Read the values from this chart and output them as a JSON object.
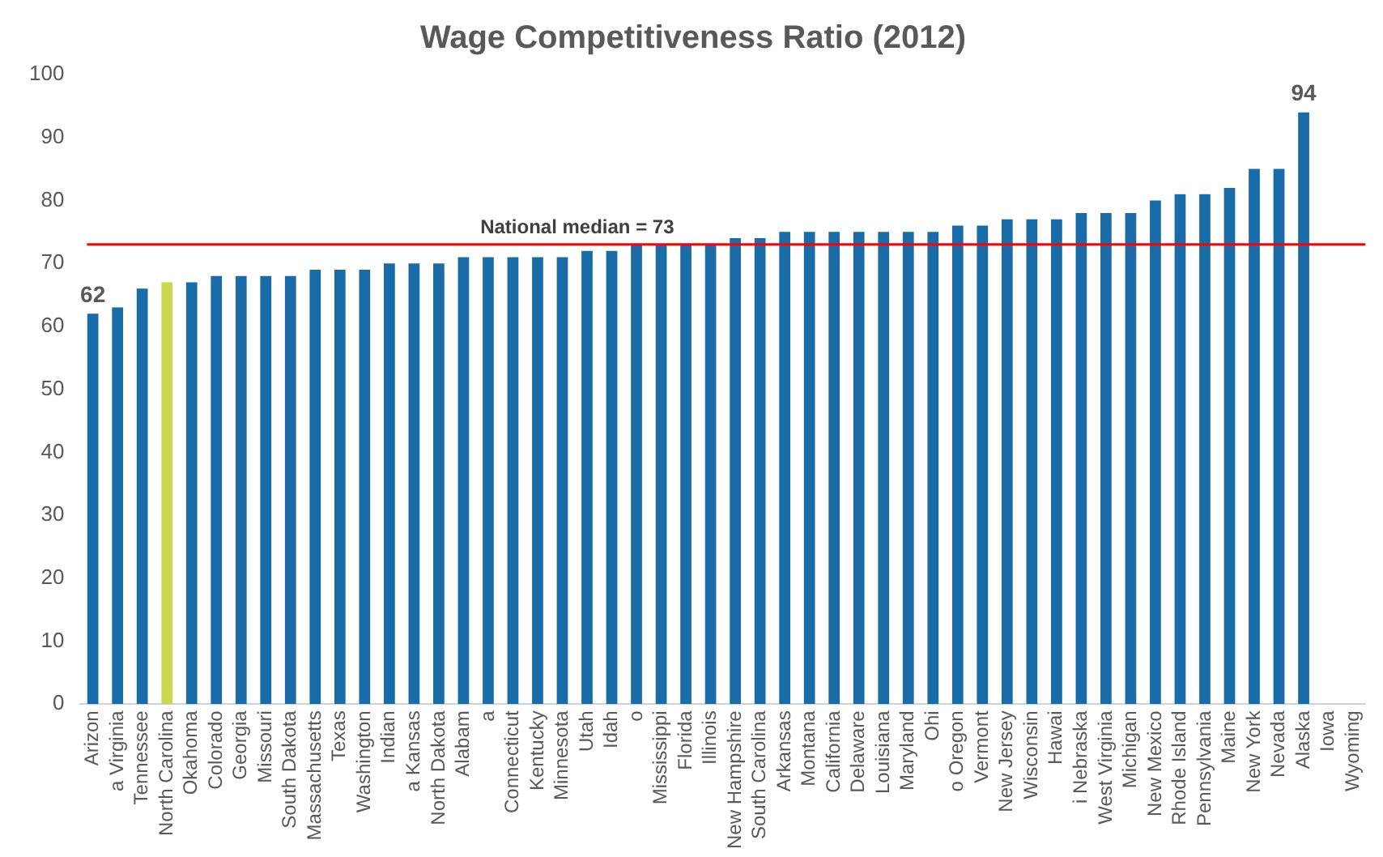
{
  "chart_data": {
    "type": "bar",
    "title": "Wage Competitiveness Ratio (2012)",
    "categories": [
      "Arizon",
      "a Virginia",
      "Tennessee",
      "North Carolina",
      "Okahoma",
      "Colorado",
      "Georgia",
      "Missouri",
      "South Dakota",
      "Massachusetts",
      "Texas",
      "Washington",
      "Indian",
      "a Kansas",
      "North Dakota",
      "Alabam",
      "a",
      "Connecticut",
      "Kentucky",
      "Minnesota",
      "Utah",
      "Idah",
      "o",
      "Mississippi",
      "Florida",
      "Illinois",
      "New Hampshire",
      "South Carolina",
      "Arkansas",
      "Montana",
      "California",
      "Delaware",
      "Louisiana",
      "Maryland",
      "Ohi",
      "o Oregon",
      "Vermont",
      "New Jersey",
      "Wisconsin",
      "Hawai",
      "i Nebraska",
      "West Virginia",
      "Michigan",
      "New Mexico",
      "Rhode Island",
      "Pennsylvania",
      "Maine",
      "New York",
      "Nevada",
      "Alaska",
      "Iowa",
      "Wyoming"
    ],
    "values": [
      62,
      63,
      66,
      67,
      67,
      68,
      68,
      68,
      68,
      69,
      69,
      69,
      70,
      70,
      70,
      71,
      71,
      71,
      71,
      71,
      72,
      72,
      73,
      73,
      73,
      73,
      74,
      74,
      75,
      75,
      75,
      75,
      75,
      75,
      75,
      76,
      76,
      77,
      77,
      77,
      78,
      78,
      78,
      80,
      81,
      81,
      82,
      85,
      85,
      94,
      null,
      null
    ],
    "colors": [
      "#1a6ca8",
      "#1a6ca8",
      "#1a6ca8",
      "#c9d94c",
      "#1a6ca8",
      "#1a6ca8",
      "#1a6ca8",
      "#1a6ca8",
      "#1a6ca8",
      "#1a6ca8",
      "#1a6ca8",
      "#1a6ca8",
      "#1a6ca8",
      "#1a6ca8",
      "#1a6ca8",
      "#1a6ca8",
      "#1a6ca8",
      "#1a6ca8",
      "#1a6ca8",
      "#1a6ca8",
      "#1a6ca8",
      "#1a6ca8",
      "#1a6ca8",
      "#1a6ca8",
      "#1a6ca8",
      "#1a6ca8",
      "#1a6ca8",
      "#1a6ca8",
      "#1a6ca8",
      "#1a6ca8",
      "#1a6ca8",
      "#1a6ca8",
      "#1a6ca8",
      "#1a6ca8",
      "#1a6ca8",
      "#1a6ca8",
      "#1a6ca8",
      "#1a6ca8",
      "#1a6ca8",
      "#1a6ca8",
      "#1a6ca8",
      "#1a6ca8",
      "#1a6ca8",
      "#1a6ca8",
      "#1a6ca8",
      "#1a6ca8",
      "#1a6ca8",
      "#1a6ca8",
      "#1a6ca8",
      "#1a6ca8",
      "#1a6ca8",
      "#1a6ca8"
    ],
    "value_labels": [
      "62",
      null,
      null,
      null,
      null,
      null,
      null,
      null,
      null,
      null,
      null,
      null,
      null,
      null,
      null,
      null,
      null,
      null,
      null,
      null,
      null,
      null,
      null,
      null,
      null,
      null,
      null,
      null,
      null,
      null,
      null,
      null,
      null,
      null,
      null,
      null,
      null,
      null,
      null,
      null,
      null,
      null,
      null,
      null,
      null,
      null,
      null,
      null,
      null,
      "94",
      null,
      null
    ],
    "ylim": [
      0,
      100
    ],
    "yticks": [
      0,
      10,
      20,
      30,
      40,
      50,
      60,
      70,
      80,
      90,
      100
    ],
    "grid": false,
    "ref_lines": [
      {
        "axis": "y",
        "value": 73,
        "label": "National median = 73",
        "color": "#ff0000"
      }
    ]
  }
}
